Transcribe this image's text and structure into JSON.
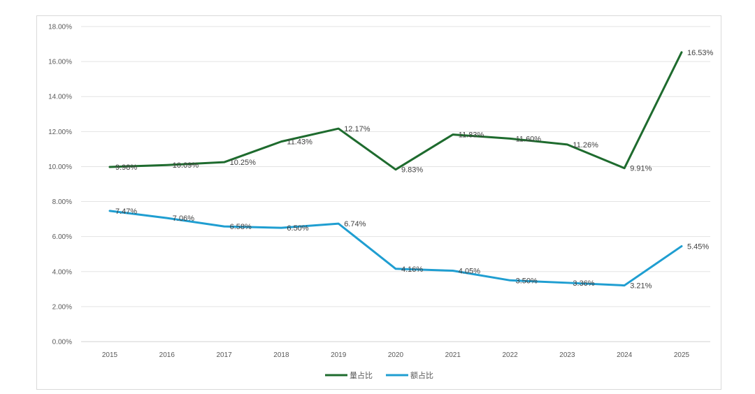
{
  "chart_data": {
    "type": "line",
    "title": "",
    "xlabel": "",
    "ylabel": "",
    "categories": [
      "2015",
      "2016",
      "2017",
      "2018",
      "2019",
      "2020",
      "2021",
      "2022",
      "2023",
      "2024",
      "2025"
    ],
    "ylim": [
      0,
      18
    ],
    "yticks": [
      0,
      2,
      4,
      6,
      8,
      10,
      12,
      14,
      16,
      18
    ],
    "ytick_labels": [
      "0.00%",
      "2.00%",
      "4.00%",
      "6.00%",
      "8.00%",
      "10.00%",
      "12.00%",
      "14.00%",
      "16.00%",
      "18.00%"
    ],
    "grid": true,
    "legend_position": "bottom",
    "series": [
      {
        "name": "量占比",
        "color": "#1e6b2e",
        "values": [
          9.98,
          10.09,
          10.25,
          11.43,
          12.17,
          9.83,
          11.83,
          11.6,
          11.26,
          9.91,
          16.53
        ],
        "labels": [
          "9.98%",
          "10.09%",
          "10.25%",
          "11.43%",
          "12.17%",
          "9.83%",
          "11.83%",
          "11.60%",
          "11.26%",
          "9.91%",
          "16.53%"
        ]
      },
      {
        "name": "额占比",
        "color": "#1f9ed1",
        "values": [
          7.47,
          7.06,
          6.58,
          6.5,
          6.74,
          4.16,
          4.05,
          3.5,
          3.36,
          3.21,
          5.45
        ],
        "labels": [
          "7.47%",
          "7.06%",
          "6.58%",
          "6.50%",
          "6.74%",
          "4.16%",
          "4.05%",
          "3.50%",
          "3.36%",
          "3.21%",
          "5.45%"
        ]
      }
    ]
  }
}
